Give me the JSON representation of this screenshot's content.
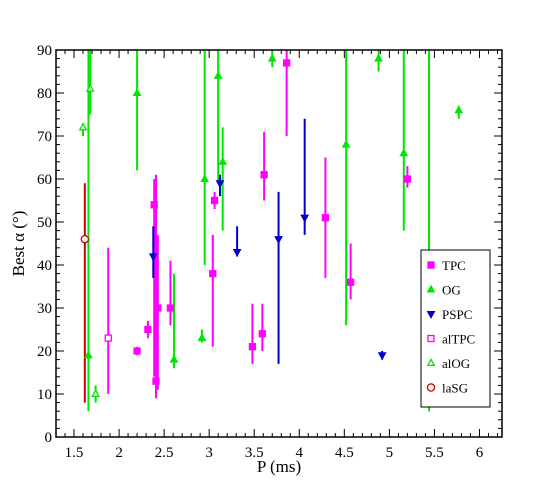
{
  "chart_data": {
    "type": "scatter",
    "title": "",
    "xlabel": "P (ms)",
    "ylabel": "Best α (°)",
    "xlim": [
      1.3,
      6.25
    ],
    "ylim": [
      0,
      90
    ],
    "xticks": [
      1.5,
      2,
      2.5,
      3,
      3.5,
      4,
      4.5,
      5,
      5.5,
      6
    ],
    "xtick_labels": [
      "1.5",
      "2",
      "2.5",
      "3",
      "3.5",
      "4",
      "4.5",
      "5",
      "5.5",
      "6"
    ],
    "yticks": [
      0,
      10,
      20,
      30,
      40,
      50,
      60,
      70,
      80,
      90
    ],
    "ytick_labels": [
      "0",
      "10",
      "20",
      "30",
      "40",
      "50",
      "60",
      "70",
      "80",
      "90"
    ],
    "legend_position": "right",
    "series": [
      {
        "name": "TPC",
        "marker": "square",
        "filled": true,
        "color": "#ff00ff",
        "points": [
          {
            "x": 2.2,
            "y": 20,
            "lo": 19,
            "hi": 21
          },
          {
            "x": 2.32,
            "y": 25,
            "lo": 23,
            "hi": 27
          },
          {
            "x": 2.39,
            "y": 54,
            "lo": 14,
            "hi": 60
          },
          {
            "x": 2.41,
            "y": 13,
            "lo": 9,
            "hi": 61
          },
          {
            "x": 2.43,
            "y": 30,
            "lo": 11,
            "hi": 47
          },
          {
            "x": 2.57,
            "y": 30,
            "lo": 26,
            "hi": 41
          },
          {
            "x": 3.04,
            "y": 38,
            "lo": 21,
            "hi": 47
          },
          {
            "x": 3.06,
            "y": 55,
            "lo": 53,
            "hi": 57
          },
          {
            "x": 3.48,
            "y": 21,
            "lo": 17,
            "hi": 31
          },
          {
            "x": 3.59,
            "y": 24,
            "lo": 20,
            "hi": 31
          },
          {
            "x": 3.61,
            "y": 61,
            "lo": 55,
            "hi": 71
          },
          {
            "x": 3.86,
            "y": 87,
            "lo": 70,
            "hi": 90
          },
          {
            "x": 4.29,
            "y": 51,
            "lo": 37,
            "hi": 65
          },
          {
            "x": 4.57,
            "y": 36,
            "lo": 32,
            "hi": 45
          },
          {
            "x": 5.2,
            "y": 60,
            "lo": 58,
            "hi": 63
          }
        ]
      },
      {
        "name": "OG",
        "marker": "triangle-up",
        "filled": true,
        "color": "#00e600",
        "points": [
          {
            "x": 1.66,
            "y": 19,
            "lo": 6,
            "hi": 90
          },
          {
            "x": 2.2,
            "y": 80,
            "lo": 62,
            "hi": 90
          },
          {
            "x": 2.61,
            "y": 18,
            "lo": 16,
            "hi": 38
          },
          {
            "x": 2.92,
            "y": 23,
            "lo": 22,
            "hi": 25
          },
          {
            "x": 2.95,
            "y": 60,
            "lo": 40,
            "hi": 90
          },
          {
            "x": 3.1,
            "y": 84,
            "lo": 59,
            "hi": 90
          },
          {
            "x": 3.15,
            "y": 64,
            "lo": 48,
            "hi": 72
          },
          {
            "x": 3.7,
            "y": 88,
            "lo": 86,
            "hi": 90
          },
          {
            "x": 4.52,
            "y": 68,
            "lo": 26,
            "hi": 90
          },
          {
            "x": 4.88,
            "y": 88,
            "lo": 85,
            "hi": 90
          },
          {
            "x": 5.16,
            "y": 66,
            "lo": 48,
            "hi": 90
          },
          {
            "x": 5.77,
            "y": 76,
            "lo": 74,
            "hi": 77
          }
        ]
      },
      {
        "name": "PSPC",
        "marker": "triangle-down",
        "filled": true,
        "color": "#0000cd",
        "points": [
          {
            "x": 2.38,
            "y": 42,
            "lo": 37,
            "hi": 49
          },
          {
            "x": 3.12,
            "y": 59,
            "lo": 56,
            "hi": 61
          },
          {
            "x": 3.31,
            "y": 43,
            "lo": 42,
            "hi": 49
          },
          {
            "x": 3.77,
            "y": 46,
            "lo": 17,
            "hi": 57
          },
          {
            "x": 4.06,
            "y": 51,
            "lo": 47,
            "hi": 74
          },
          {
            "x": 4.92,
            "y": 19,
            "lo": 18,
            "hi": 20
          }
        ]
      },
      {
        "name": "alTPC",
        "marker": "square",
        "filled": false,
        "color": "#ff00ff",
        "points": [
          {
            "x": 1.88,
            "y": 23,
            "lo": 10,
            "hi": 44
          }
        ]
      },
      {
        "name": "alOG",
        "marker": "triangle-up",
        "filled": false,
        "color": "#00e600",
        "points": [
          {
            "x": 1.6,
            "y": 72,
            "lo": 70,
            "hi": 73
          },
          {
            "x": 1.68,
            "y": 81,
            "lo": 75,
            "hi": 90
          },
          {
            "x": 1.74,
            "y": 10,
            "lo": 8,
            "hi": 12
          },
          {
            "x": 5.44,
            "y": 42,
            "lo": 6,
            "hi": 90
          }
        ]
      },
      {
        "name": "laSG",
        "marker": "circle",
        "filled": false,
        "color": "#cc0000",
        "points": [
          {
            "x": 1.62,
            "y": 46,
            "lo": 8,
            "hi": 59
          }
        ]
      }
    ]
  }
}
